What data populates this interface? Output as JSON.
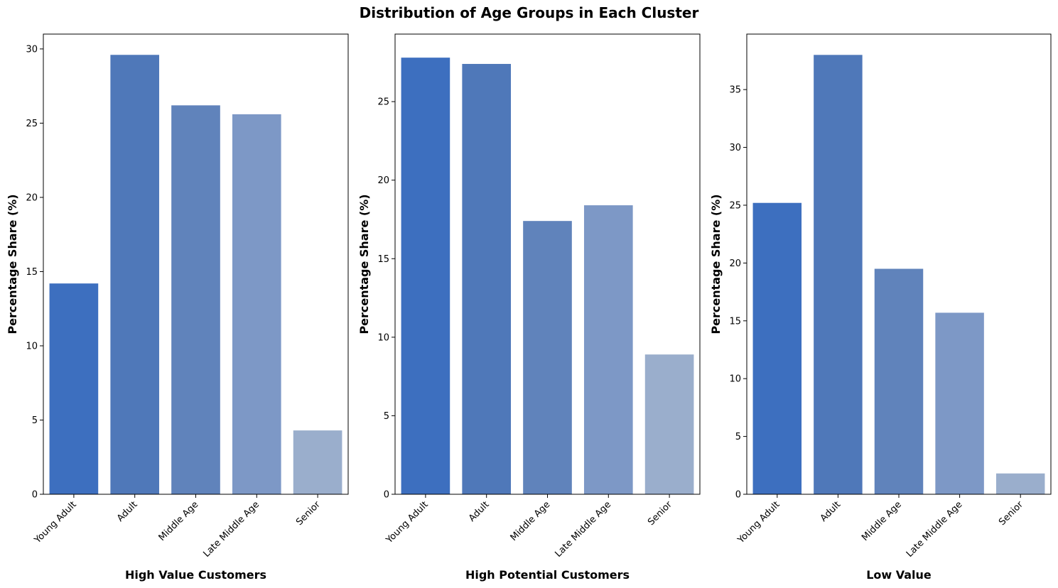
{
  "figure": {
    "title": "Distribution of Age Groups in Each Cluster"
  },
  "colors": {
    "bars": [
      "#3d6fbf",
      "#4f78b9",
      "#6083bb",
      "#7d98c6",
      "#9aaecc"
    ],
    "axis": "#000000"
  },
  "chart_data": [
    {
      "type": "bar",
      "xlabel": "High Value Customers",
      "ylabel": "Percentage Share (%)",
      "categories": [
        "Young Adult",
        "Adult",
        "Middle Age",
        "Late Middle Age",
        "Senior"
      ],
      "values": [
        14.2,
        29.6,
        26.2,
        25.6,
        4.3
      ],
      "ylim": [
        0,
        31
      ],
      "yticks": [
        0,
        5,
        10,
        15,
        20,
        25,
        30
      ],
      "grid": false
    },
    {
      "type": "bar",
      "xlabel": "High Potential Customers",
      "ylabel": "Percentage Share (%)",
      "categories": [
        "Young Adult",
        "Adult",
        "Middle Age",
        "Late Middle Age",
        "Senior"
      ],
      "values": [
        27.8,
        27.4,
        17.4,
        18.4,
        8.9
      ],
      "ylim": [
        0,
        29.3
      ],
      "yticks": [
        0,
        5,
        10,
        15,
        20,
        25
      ],
      "grid": false
    },
    {
      "type": "bar",
      "xlabel": "Low Value",
      "ylabel": "Percentage Share (%)",
      "categories": [
        "Young Adult",
        "Adult",
        "Middle Age",
        "Late Middle Age",
        "Senior"
      ],
      "values": [
        25.2,
        38.0,
        19.5,
        15.7,
        1.8
      ],
      "ylim": [
        0,
        39.8
      ],
      "yticks": [
        0,
        5,
        10,
        15,
        20,
        25,
        30,
        35
      ],
      "grid": false
    }
  ]
}
